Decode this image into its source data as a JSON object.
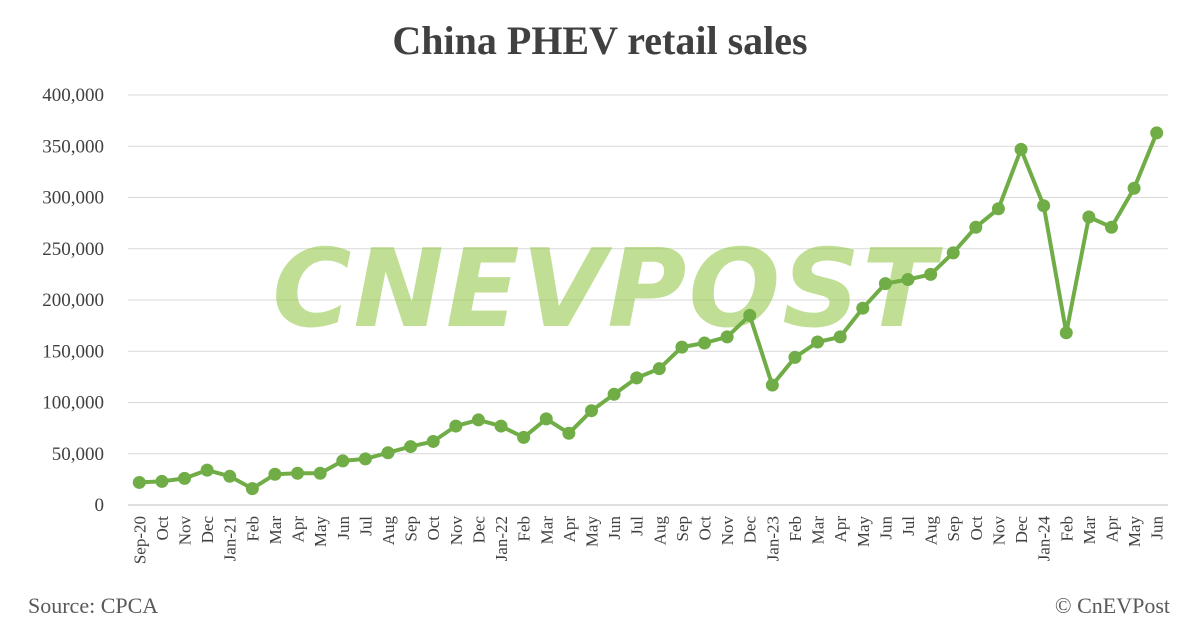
{
  "chart_data": {
    "type": "line",
    "title": "China PHEV retail sales",
    "xlabel": "",
    "ylabel": "",
    "ylim": [
      0,
      400000
    ],
    "y_ticks": [
      "0",
      "50,000",
      "100,000",
      "150,000",
      "200,000",
      "250,000",
      "300,000",
      "350,000",
      "400,000"
    ],
    "grid": true,
    "legend": "none",
    "categories": [
      "Sep-20",
      "Oct",
      "Nov",
      "Dec",
      "Jan-21",
      "Feb",
      "Mar",
      "Apr",
      "May",
      "Jun",
      "Jul",
      "Aug",
      "Sep",
      "Oct",
      "Nov",
      "Dec",
      "Jan-22",
      "Feb",
      "Mar",
      "Apr",
      "May",
      "Jun",
      "Jul",
      "Aug",
      "Sep",
      "Oct",
      "Nov",
      "Dec",
      "Jan-23",
      "Feb",
      "Mar",
      "Apr",
      "May",
      "Jun",
      "Jul",
      "Aug",
      "Sep",
      "Oct",
      "Nov",
      "Dec",
      "Jan-24",
      "Feb",
      "Mar",
      "Apr",
      "May",
      "Jun"
    ],
    "series": [
      {
        "color": "#70ad47",
        "values": [
          22000,
          23000,
          26000,
          34000,
          28000,
          16000,
          30000,
          31000,
          31000,
          43000,
          45000,
          51000,
          57000,
          62000,
          77000,
          83000,
          77000,
          66000,
          84000,
          70000,
          92000,
          108000,
          124000,
          133000,
          154000,
          158000,
          164000,
          185000,
          117000,
          144000,
          159000,
          164000,
          192000,
          216000,
          220000,
          225000,
          246000,
          271000,
          289000,
          347000,
          292000,
          168000,
          281000,
          271000,
          309000,
          363000
        ]
      }
    ]
  },
  "watermark": "CNEVPOST",
  "footer": {
    "source": "Source: CPCA",
    "copyright": "© CnEVPost"
  }
}
